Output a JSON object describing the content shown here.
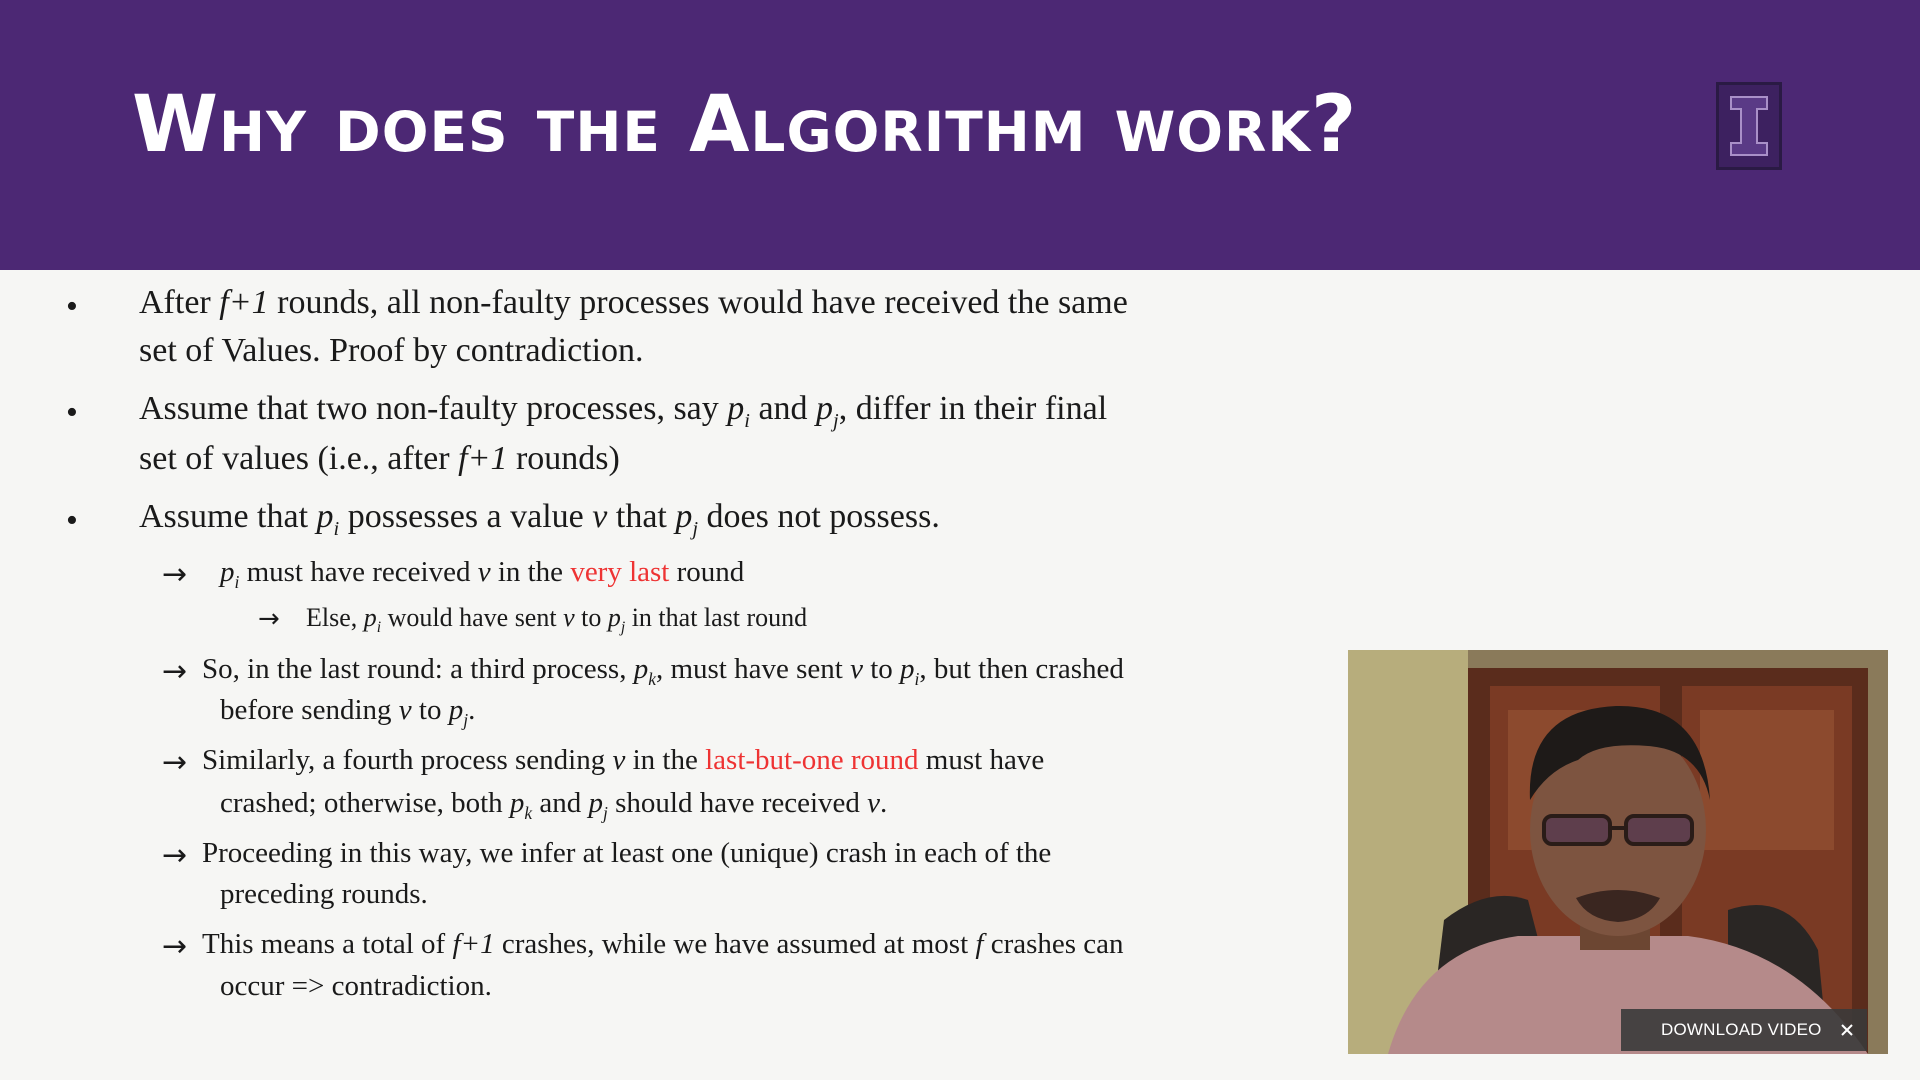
{
  "slide": {
    "title": "Why does the Algorithm work?",
    "logo_letter": "I",
    "bullets": [
      {
        "lines": [
          [
            "After ",
            {
              "i": "f+1"
            },
            " rounds, all non-faulty processes would have received the same"
          ],
          [
            "set of Values. Proof by contradiction."
          ]
        ]
      },
      {
        "lines": [
          [
            "Assume that two non-faulty processes, say ",
            {
              "i": "p",
              "sub": "i"
            },
            " and ",
            {
              "i": "p",
              "sub": "j"
            },
            ", differ in their final"
          ],
          [
            "set of values (i.e., after ",
            {
              "i": "f+1"
            },
            " rounds)"
          ]
        ]
      },
      {
        "lines": [
          [
            "Assume that ",
            {
              "i": "p",
              "sub": "i"
            },
            " possesses a value ",
            {
              "i": "v"
            },
            " that ",
            {
              "i": "p",
              "sub": "j"
            },
            " does not possess."
          ]
        ]
      }
    ],
    "sub_points": [
      {
        "lines": [
          [
            {
              "i": "p",
              "sub": "i"
            },
            "  must have received ",
            {
              "i": "v"
            },
            " in the ",
            {
              "red": "very last"
            },
            " round"
          ]
        ]
      },
      {
        "lines": [
          [
            "Else, ",
            {
              "i": "p",
              "sub": "i"
            },
            " would have sent ",
            {
              "i": "v"
            },
            " to ",
            {
              "i": "p",
              "sub": "j"
            },
            " in that last round"
          ]
        ]
      },
      {
        "lines": [
          [
            "So, in the last round: a third process, ",
            {
              "i": "p",
              "sub": "k"
            },
            ", must have sent ",
            {
              "i": "v"
            },
            " to ",
            {
              "i": "p",
              "sub": "i"
            },
            ", but then crashed"
          ],
          [
            "before sending ",
            {
              "i": "v"
            },
            " to ",
            {
              "i": "p",
              "sub": "j"
            },
            "."
          ]
        ]
      },
      {
        "lines": [
          [
            "Similarly, a fourth process sending ",
            {
              "i": "v"
            },
            " in the ",
            {
              "red": "last-but-one round"
            },
            " must have"
          ],
          [
            "crashed; otherwise, both ",
            {
              "i": "p",
              "sub": "k"
            },
            " and ",
            {
              "i": "p",
              "sub": "j"
            },
            " should have received ",
            {
              "i": "v"
            },
            "."
          ]
        ]
      },
      {
        "lines": [
          [
            "Proceeding in this way, we infer at least one (unique) crash in each of the"
          ],
          [
            "preceding rounds."
          ]
        ]
      },
      {
        "lines": [
          [
            "This means a total of ",
            {
              "i": "f+1"
            },
            " crashes, while we have assumed at most ",
            {
              "i": "f"
            },
            " crashes can"
          ],
          [
            "occur => contradiction."
          ]
        ]
      }
    ]
  },
  "video_overlay": {
    "download_label": "DOWNLOAD VIDEO",
    "close_icon": "close-icon"
  },
  "colors": {
    "header_bg": "#4c2874",
    "highlight": "#ee3333"
  }
}
